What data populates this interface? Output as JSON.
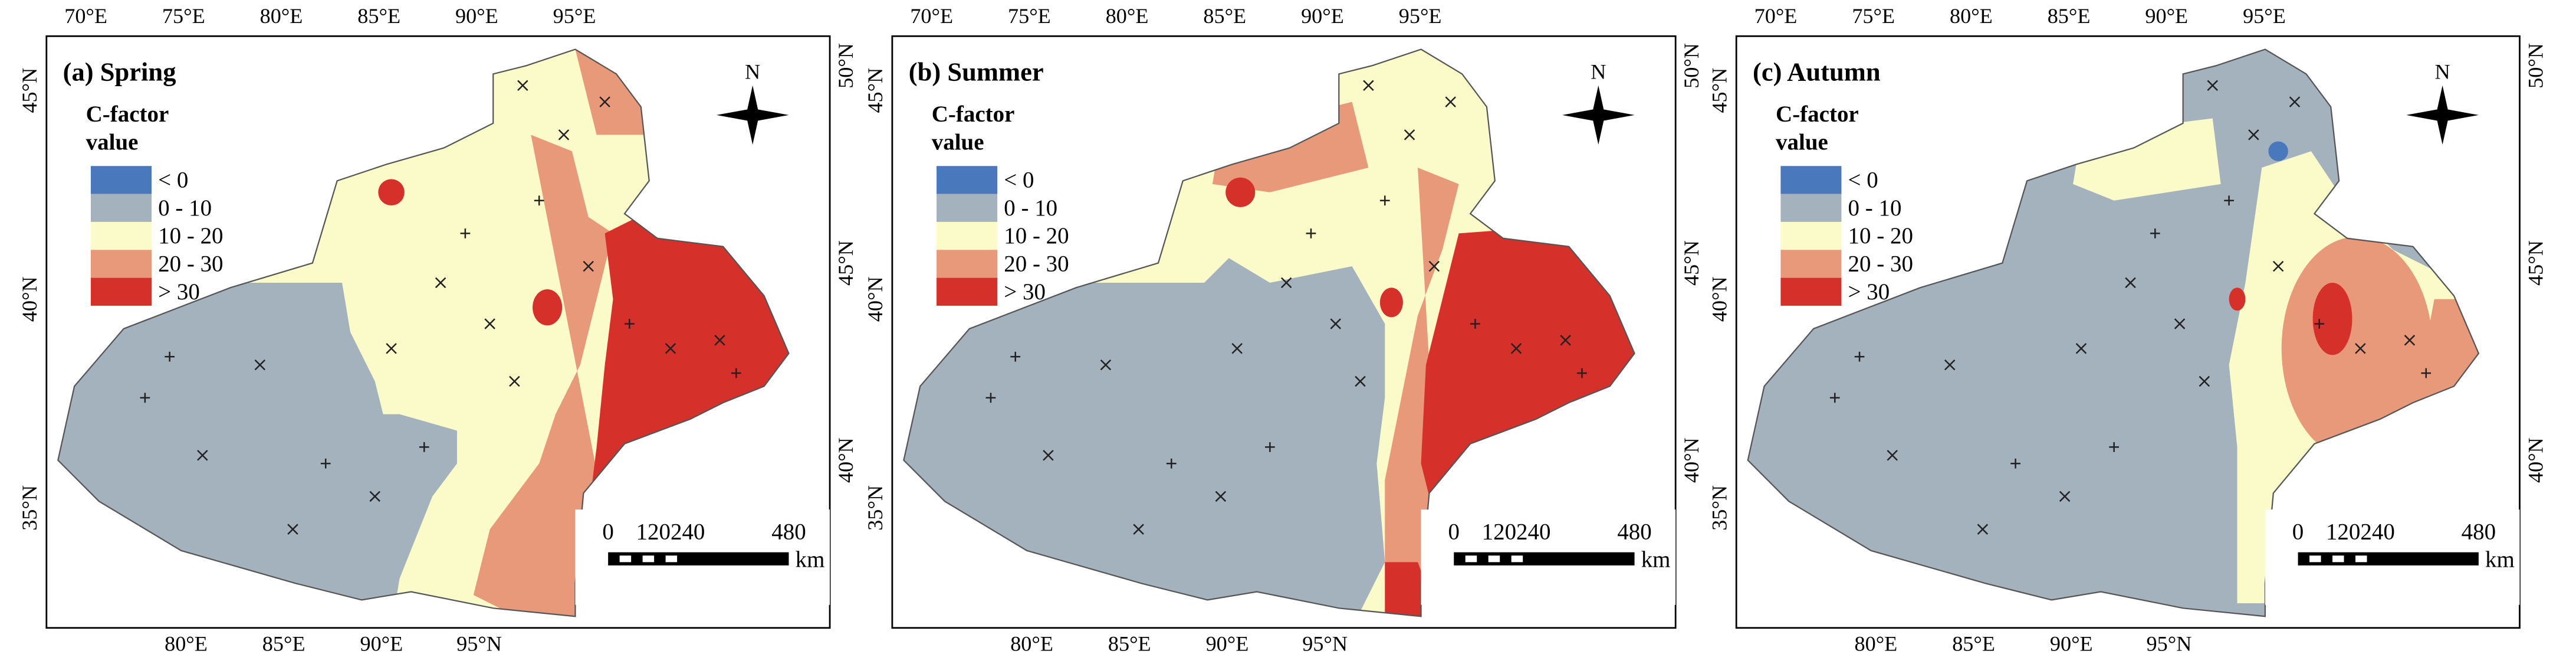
{
  "panels": [
    {
      "title": "(a)  Spring"
    },
    {
      "title": "(b) Summer"
    },
    {
      "title": "(c)  Autumn"
    }
  ],
  "legend": {
    "title": "C-factor value",
    "items": [
      {
        "label": "< 0",
        "color": "#4a78bd"
      },
      {
        "label": "0 - 10",
        "color": "#a3b2bd"
      },
      {
        "label": "10 - 20",
        "color": "#fbfbca"
      },
      {
        "label": "20 - 30",
        "color": "#e8997a"
      },
      {
        "label": "> 30",
        "color": "#d5302a"
      }
    ]
  },
  "axes": {
    "top": [
      "70°E",
      "75°E",
      "80°E",
      "85°E",
      "90°E",
      "95°E"
    ],
    "bottom": [
      "80°E",
      "85°E",
      "90°E",
      "95°N"
    ],
    "left": [
      "45°N",
      "40°N",
      "35°N"
    ],
    "right": [
      "50°N",
      "45°N",
      "40°N"
    ]
  },
  "north": "N",
  "scale_bar": {
    "labels": [
      "0",
      "120240",
      "480"
    ],
    "unit": "km"
  }
}
